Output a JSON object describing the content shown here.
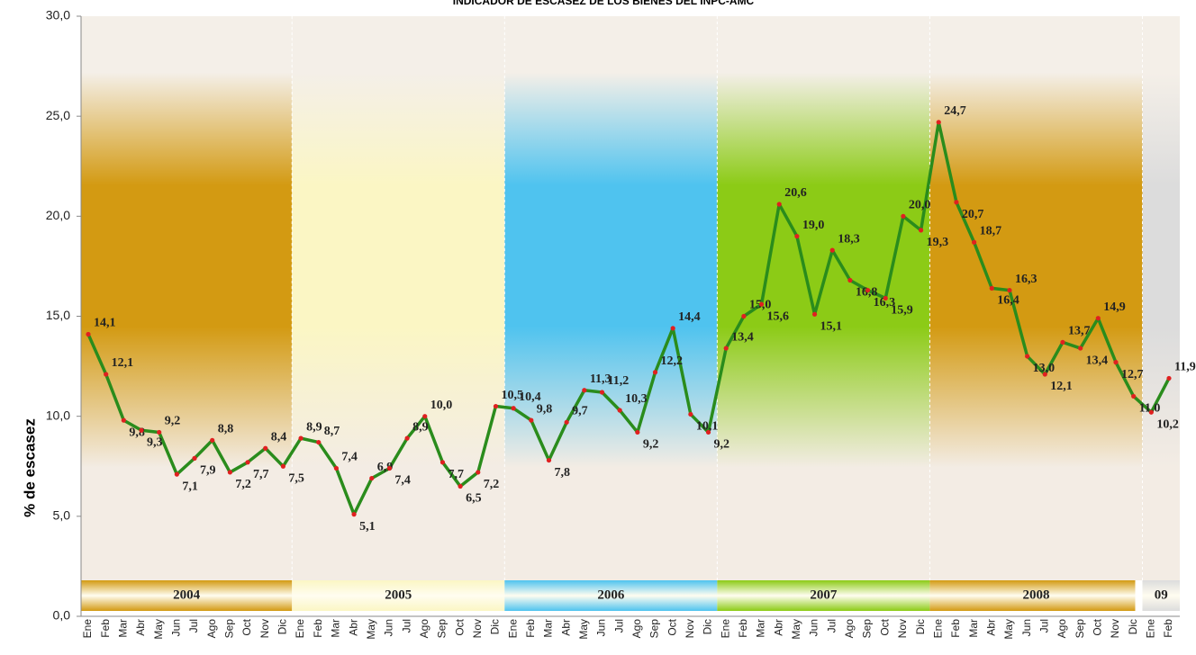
{
  "chart_data": {
    "type": "line",
    "title": "INDICADOR DE ESCASEZ DE LOS BIENES DEL INPC-AMC",
    "y_label": "% de escasez",
    "categories": [
      "Ene",
      "Feb",
      "Mar",
      "Abr",
      "May",
      "Jun",
      "Jul",
      "Ago",
      "Sep",
      "Oct",
      "Nov",
      "Dic",
      "Ene",
      "Feb",
      "Mar",
      "Abr",
      "May",
      "Jun",
      "Jul",
      "Ago",
      "Sep",
      "Oct",
      "Nov",
      "Dic",
      "Ene",
      "Feb",
      "Mar",
      "Abr",
      "May",
      "Jun",
      "Jul",
      "Ago",
      "Sep",
      "Oct",
      "Nov",
      "Dic",
      "Ene",
      "Feb",
      "Mar",
      "Abr",
      "May",
      "Jun",
      "Jul",
      "Ago",
      "Sep",
      "Oct",
      "Nov",
      "Dic",
      "Ene",
      "Feb",
      "Mar",
      "Abr",
      "May",
      "Jun",
      "Jul",
      "Ago",
      "Sep",
      "Oct",
      "Nov",
      "Dic",
      "Ene",
      "Feb"
    ],
    "year_labels": [
      "2004",
      "2005",
      "2006",
      "2007",
      "2008",
      "09"
    ],
    "band_colors": [
      "#d39a12",
      "#fbf6c4",
      "#4fc3ef",
      "#8ccb16",
      "#d39a12",
      "#dcdcdc"
    ],
    "series": [
      {
        "name": "% de escasez",
        "color": "#2a8c1c",
        "marker_color": "#e02020",
        "values": [
          14.1,
          12.1,
          9.8,
          9.3,
          9.2,
          7.1,
          7.9,
          8.8,
          7.2,
          7.7,
          8.4,
          7.5,
          8.9,
          8.7,
          7.4,
          5.1,
          6.9,
          7.4,
          8.9,
          10.0,
          7.7,
          6.5,
          7.2,
          10.5,
          10.4,
          9.8,
          7.8,
          9.7,
          11.3,
          11.2,
          10.3,
          9.2,
          12.2,
          14.4,
          10.1,
          9.2,
          13.4,
          15.0,
          15.6,
          20.6,
          19.0,
          15.1,
          18.3,
          16.8,
          16.3,
          15.9,
          20.0,
          19.3,
          24.7,
          20.7,
          18.7,
          16.4,
          16.3,
          13.0,
          12.1,
          13.7,
          13.4,
          14.9,
          12.7,
          11.0,
          10.2,
          11.9
        ],
        "value_labels": [
          "14,1",
          "12,1",
          "9,8",
          "9,3",
          "9,2",
          "7,1",
          "7,9",
          "8,8",
          "7,2",
          "7,7",
          "8,4",
          "7,5",
          "8,9",
          "8,7",
          "7,4",
          "5,1",
          "6,9",
          "7,4",
          "8,9",
          "10,0",
          "7,7",
          "6,5",
          "7,2",
          "10,5",
          "10,4",
          "9,8",
          "7,8",
          "9,7",
          "11,3",
          "11,2",
          "10,3",
          "9,2",
          "12,2",
          "14,4",
          "10,1",
          "9,2",
          "13,4",
          "15,0",
          "15,6",
          "20,6",
          "19,0",
          "15,1",
          "18,3",
          "16,8",
          "16,3",
          "15,9",
          "20,0",
          "19,3",
          "24,7",
          "20,7",
          "18,7",
          "16,4",
          "16,3",
          "13,0",
          "12,1",
          "13,7",
          "13,4",
          "14,9",
          "12,7",
          "11,0",
          "10,2",
          "11,9"
        ]
      }
    ],
    "ylim": [
      0,
      30
    ],
    "yticks": [
      {
        "value": 0,
        "label": "0,0"
      },
      {
        "value": 5,
        "label": "5,0"
      },
      {
        "value": 10,
        "label": "10,0"
      },
      {
        "value": 15,
        "label": "15,0"
      },
      {
        "value": 20,
        "label": "20,0"
      },
      {
        "value": 25,
        "label": "25,0"
      },
      {
        "value": 30,
        "label": "30,0"
      }
    ]
  }
}
